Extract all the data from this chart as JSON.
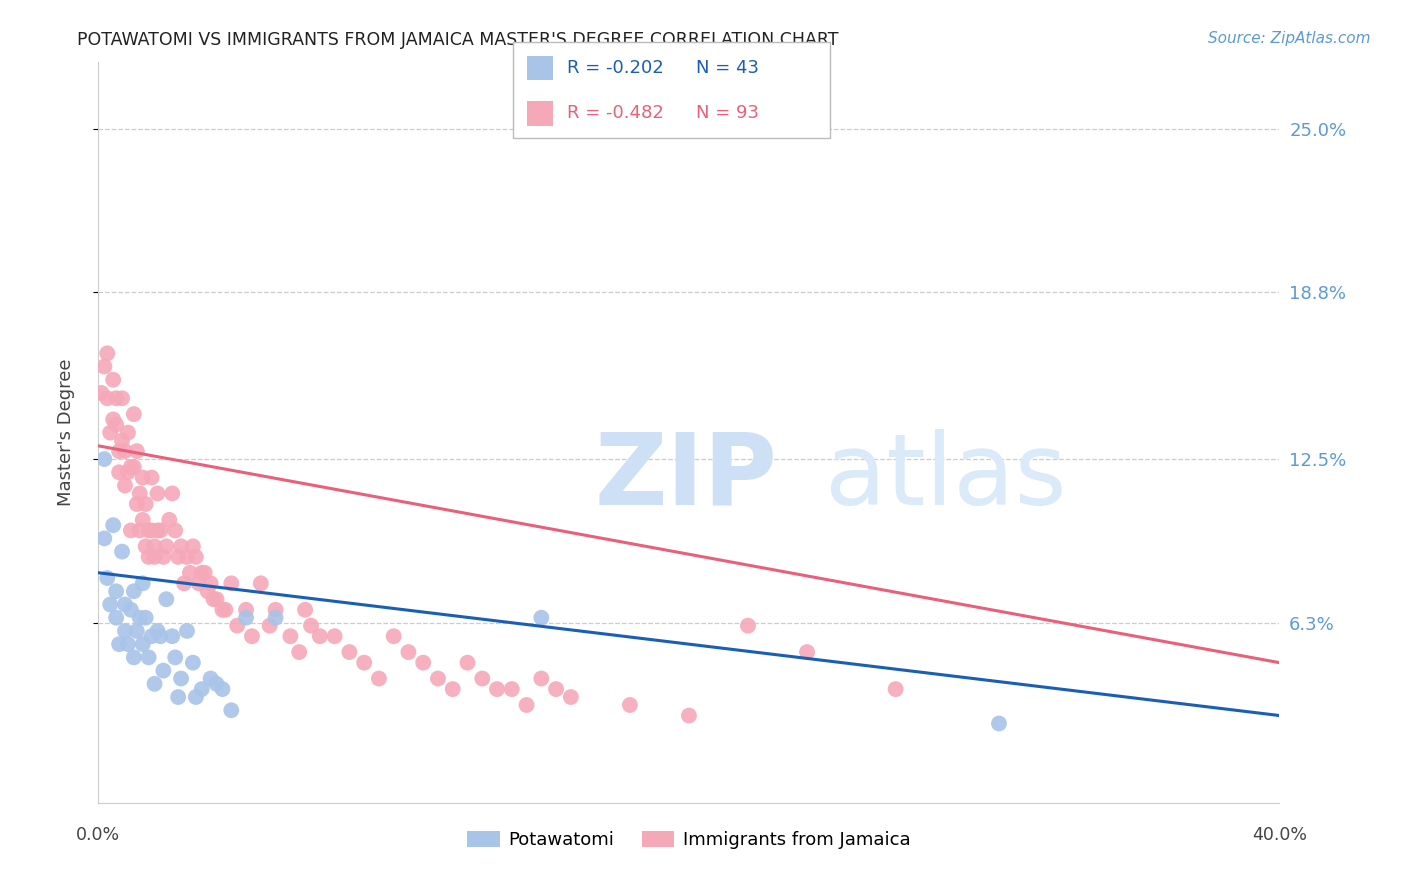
{
  "title": "POTAWATOMI VS IMMIGRANTS FROM JAMAICA MASTER'S DEGREE CORRELATION CHART",
  "source": "Source: ZipAtlas.com",
  "ylabel": "Master's Degree",
  "ytick_labels": [
    "25.0%",
    "18.8%",
    "12.5%",
    "6.3%"
  ],
  "ytick_values": [
    0.25,
    0.188,
    0.125,
    0.063
  ],
  "xlim": [
    0.0,
    0.4
  ],
  "ylim": [
    -0.005,
    0.275
  ],
  "legend_label_blue": "Potawatomi",
  "legend_label_pink": "Immigrants from Jamaica",
  "blue_color": "#a8c4e8",
  "pink_color": "#f5a8b8",
  "line_blue_color": "#1a5fb4",
  "line_pink_color": "#e8607a",
  "blue_r": "R = -0.202",
  "blue_n": "N = 43",
  "pink_r": "R = -0.482",
  "pink_n": "N = 93",
  "blue_line_start_y": 0.082,
  "blue_line_end_y": 0.028,
  "pink_line_start_y": 0.13,
  "pink_line_end_y": 0.048,
  "blue_scatter_x": [
    0.002,
    0.002,
    0.003,
    0.004,
    0.005,
    0.006,
    0.006,
    0.007,
    0.008,
    0.009,
    0.009,
    0.01,
    0.011,
    0.012,
    0.012,
    0.013,
    0.014,
    0.015,
    0.015,
    0.016,
    0.017,
    0.018,
    0.019,
    0.02,
    0.021,
    0.022,
    0.023,
    0.025,
    0.026,
    0.027,
    0.028,
    0.03,
    0.032,
    0.033,
    0.035,
    0.038,
    0.04,
    0.042,
    0.045,
    0.05,
    0.06,
    0.15,
    0.305
  ],
  "blue_scatter_y": [
    0.125,
    0.095,
    0.08,
    0.07,
    0.1,
    0.065,
    0.075,
    0.055,
    0.09,
    0.06,
    0.07,
    0.055,
    0.068,
    0.075,
    0.05,
    0.06,
    0.065,
    0.055,
    0.078,
    0.065,
    0.05,
    0.058,
    0.04,
    0.06,
    0.058,
    0.045,
    0.072,
    0.058,
    0.05,
    0.035,
    0.042,
    0.06,
    0.048,
    0.035,
    0.038,
    0.042,
    0.04,
    0.038,
    0.03,
    0.065,
    0.065,
    0.065,
    0.025
  ],
  "pink_scatter_x": [
    0.001,
    0.002,
    0.003,
    0.003,
    0.004,
    0.005,
    0.005,
    0.006,
    0.006,
    0.007,
    0.007,
    0.008,
    0.008,
    0.009,
    0.009,
    0.01,
    0.01,
    0.011,
    0.011,
    0.012,
    0.012,
    0.013,
    0.013,
    0.014,
    0.014,
    0.015,
    0.015,
    0.016,
    0.016,
    0.017,
    0.017,
    0.018,
    0.018,
    0.019,
    0.019,
    0.02,
    0.02,
    0.021,
    0.022,
    0.023,
    0.024,
    0.025,
    0.026,
    0.027,
    0.028,
    0.029,
    0.03,
    0.031,
    0.032,
    0.033,
    0.034,
    0.035,
    0.036,
    0.037,
    0.038,
    0.039,
    0.04,
    0.042,
    0.043,
    0.045,
    0.047,
    0.05,
    0.052,
    0.055,
    0.058,
    0.06,
    0.065,
    0.068,
    0.07,
    0.072,
    0.075,
    0.08,
    0.085,
    0.09,
    0.095,
    0.1,
    0.105,
    0.11,
    0.115,
    0.12,
    0.125,
    0.13,
    0.135,
    0.14,
    0.145,
    0.15,
    0.155,
    0.16,
    0.18,
    0.2,
    0.22,
    0.24,
    0.27
  ],
  "pink_scatter_y": [
    0.15,
    0.16,
    0.148,
    0.165,
    0.135,
    0.155,
    0.14,
    0.138,
    0.148,
    0.12,
    0.128,
    0.148,
    0.132,
    0.128,
    0.115,
    0.12,
    0.135,
    0.122,
    0.098,
    0.122,
    0.142,
    0.108,
    0.128,
    0.112,
    0.098,
    0.118,
    0.102,
    0.092,
    0.108,
    0.098,
    0.088,
    0.118,
    0.098,
    0.092,
    0.088,
    0.112,
    0.098,
    0.098,
    0.088,
    0.092,
    0.102,
    0.112,
    0.098,
    0.088,
    0.092,
    0.078,
    0.088,
    0.082,
    0.092,
    0.088,
    0.078,
    0.082,
    0.082,
    0.075,
    0.078,
    0.072,
    0.072,
    0.068,
    0.068,
    0.078,
    0.062,
    0.068,
    0.058,
    0.078,
    0.062,
    0.068,
    0.058,
    0.052,
    0.068,
    0.062,
    0.058,
    0.058,
    0.052,
    0.048,
    0.042,
    0.058,
    0.052,
    0.048,
    0.042,
    0.038,
    0.048,
    0.042,
    0.038,
    0.038,
    0.032,
    0.042,
    0.038,
    0.035,
    0.032,
    0.028,
    0.062,
    0.052,
    0.038
  ]
}
